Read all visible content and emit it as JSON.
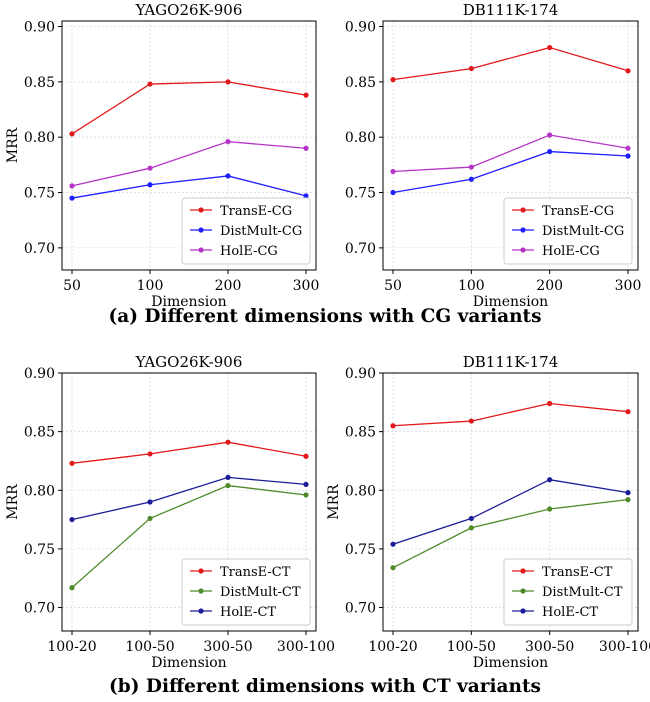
{
  "figure": {
    "caption_a": "(a) Different dimensions with CG variants",
    "caption_b": "(b) Different dimensions with CT variants"
  },
  "chart_data": [
    {
      "type": "line",
      "title": "YAGO26K-906",
      "xlabel": "Dimension",
      "ylabel": "MRR",
      "categories": [
        "50",
        "100",
        "200",
        "300"
      ],
      "y_ticks": [
        "0.70",
        "0.75",
        "0.80",
        "0.85",
        "0.90"
      ],
      "ylim": [
        0.68,
        0.905
      ],
      "grid": true,
      "legend_position": "lower-right",
      "series": [
        {
          "name": "TransE-CG",
          "color": "#e31a1c",
          "values": [
            0.803,
            0.848,
            0.85,
            0.838
          ]
        },
        {
          "name": "DistMult-CG",
          "color": "#1f1fff",
          "values": [
            0.745,
            0.757,
            0.765,
            0.747
          ]
        },
        {
          "name": "HolE-CG",
          "color": "#b535c6",
          "values": [
            0.756,
            0.772,
            0.796,
            0.79
          ]
        }
      ]
    },
    {
      "type": "line",
      "title": "DB111K-174",
      "xlabel": "Dimension",
      "ylabel": "",
      "categories": [
        "50",
        "100",
        "200",
        "300"
      ],
      "y_ticks": [
        "0.70",
        "0.75",
        "0.80",
        "0.85",
        "0.90"
      ],
      "ylim": [
        0.68,
        0.905
      ],
      "grid": true,
      "legend_position": "lower-right",
      "series": [
        {
          "name": "TransE-CG",
          "color": "#e31a1c",
          "values": [
            0.852,
            0.862,
            0.881,
            0.86
          ]
        },
        {
          "name": "DistMult-CG",
          "color": "#1f1fff",
          "values": [
            0.75,
            0.762,
            0.787,
            0.783
          ]
        },
        {
          "name": "HolE-CG",
          "color": "#b535c6",
          "values": [
            0.769,
            0.773,
            0.802,
            0.79
          ]
        }
      ]
    },
    {
      "type": "line",
      "title": "YAGO26K-906",
      "xlabel": "Dimension",
      "ylabel": "MRR",
      "categories": [
        "100-20",
        "100-50",
        "300-50",
        "300-100"
      ],
      "y_ticks": [
        "0.70",
        "0.75",
        "0.80",
        "0.85",
        "0.90"
      ],
      "ylim": [
        0.68,
        0.9
      ],
      "grid": true,
      "legend_position": "lower-right",
      "series": [
        {
          "name": "TransE-CT",
          "color": "#e31a1c",
          "values": [
            0.823,
            0.831,
            0.841,
            0.829
          ]
        },
        {
          "name": "DistMult-CT",
          "color": "#4f8a2a",
          "values": [
            0.717,
            0.776,
            0.804,
            0.796
          ]
        },
        {
          "name": "HolE-CT",
          "color": "#1c1c99",
          "values": [
            0.775,
            0.79,
            0.811,
            0.805
          ]
        }
      ]
    },
    {
      "type": "line",
      "title": "DB111K-174",
      "xlabel": "Dimension",
      "ylabel": "MRR",
      "categories": [
        "100-20",
        "100-50",
        "300-50",
        "300-100"
      ],
      "y_ticks": [
        "0.70",
        "0.75",
        "0.80",
        "0.85",
        "0.90"
      ],
      "ylim": [
        0.68,
        0.9
      ],
      "grid": true,
      "legend_position": "lower-right",
      "series": [
        {
          "name": "TransE-CT",
          "color": "#e31a1c",
          "values": [
            0.855,
            0.859,
            0.874,
            0.867
          ]
        },
        {
          "name": "DistMult-CT",
          "color": "#4f8a2a",
          "values": [
            0.734,
            0.768,
            0.784,
            0.792
          ]
        },
        {
          "name": "HolE-CT",
          "color": "#1c1c99",
          "values": [
            0.754,
            0.776,
            0.809,
            0.798
          ]
        }
      ]
    }
  ]
}
